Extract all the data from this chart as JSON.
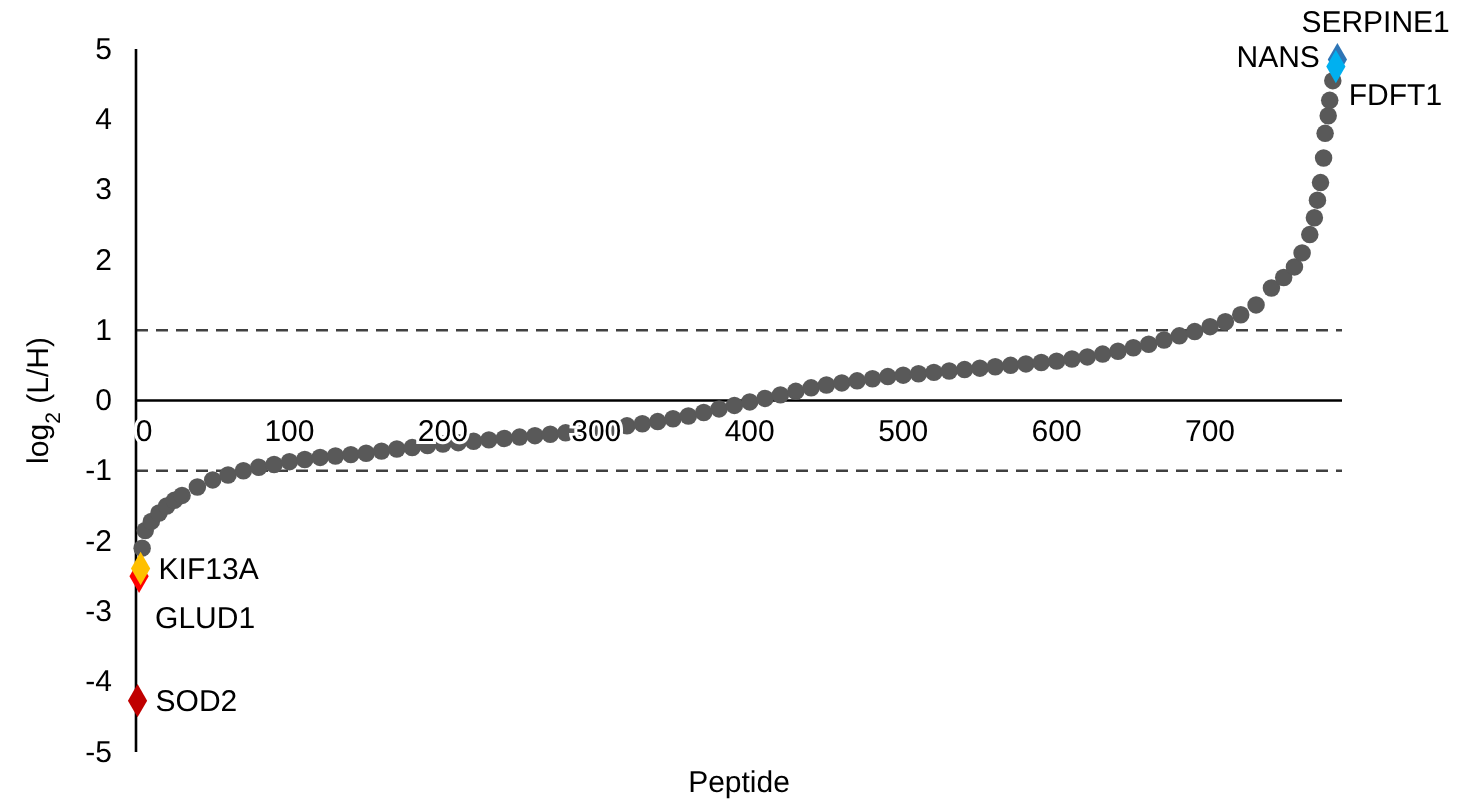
{
  "chart_data": {
    "type": "scatter",
    "xlabel": "Peptide",
    "ylabel": "log$_{2}$ (L/H)",
    "xlim": [
      0,
      786
    ],
    "ylim": [
      -5,
      5
    ],
    "xticks": [
      0,
      100,
      200,
      300,
      400,
      500,
      600,
      700
    ],
    "yticks": [
      -5,
      -4,
      -3,
      -2,
      -1,
      0,
      1,
      2,
      3,
      4,
      5
    ],
    "grid": false,
    "marker": "circle",
    "ref_lines": [
      {
        "axis": "y",
        "value": 1,
        "color": "#404040",
        "line_style": "dashed"
      },
      {
        "axis": "y",
        "value": -1,
        "color": "#404040",
        "line_style": "dashed"
      }
    ],
    "series": [
      {
        "color": "#595959",
        "x": [
          4,
          6,
          10,
          15,
          20,
          25,
          30,
          40,
          50,
          60,
          70,
          80,
          90,
          100,
          110,
          120,
          130,
          140,
          150,
          160,
          170,
          180,
          190,
          200,
          210,
          220,
          230,
          240,
          250,
          260,
          270,
          280,
          290,
          300,
          310,
          320,
          330,
          340,
          350,
          360,
          370,
          380,
          390,
          400,
          410,
          420,
          430,
          440,
          450,
          460,
          470,
          480,
          490,
          500,
          510,
          520,
          530,
          540,
          550,
          560,
          570,
          580,
          590,
          600,
          610,
          620,
          630,
          640,
          650,
          660,
          670,
          680,
          690,
          700,
          710,
          720,
          730,
          740,
          748,
          755,
          760,
          765,
          768,
          770,
          772,
          774,
          775,
          777,
          778
        ],
        "values": [
          -2.1,
          -1.85,
          -1.72,
          -1.6,
          -1.5,
          -1.42,
          -1.35,
          -1.23,
          -1.13,
          -1.06,
          -1.0,
          -0.95,
          -0.91,
          -0.87,
          -0.84,
          -0.81,
          -0.79,
          -0.77,
          -0.75,
          -0.72,
          -0.69,
          -0.67,
          -0.64,
          -0.62,
          -0.6,
          -0.58,
          -0.56,
          -0.54,
          -0.52,
          -0.5,
          -0.48,
          -0.46,
          -0.44,
          -0.42,
          -0.39,
          -0.36,
          -0.33,
          -0.3,
          -0.26,
          -0.22,
          -0.17,
          -0.12,
          -0.07,
          -0.02,
          0.03,
          0.08,
          0.13,
          0.18,
          0.22,
          0.25,
          0.28,
          0.31,
          0.34,
          0.36,
          0.38,
          0.4,
          0.42,
          0.44,
          0.46,
          0.48,
          0.5,
          0.52,
          0.54,
          0.56,
          0.59,
          0.62,
          0.66,
          0.7,
          0.75,
          0.8,
          0.86,
          0.92,
          0.98,
          1.05,
          1.12,
          1.22,
          1.36,
          1.6,
          1.75,
          1.9,
          2.1,
          2.36,
          2.6,
          2.85,
          3.1,
          3.45,
          3.8,
          4.05,
          4.27
        ]
      },
      {
        "name": "FDFT1",
        "color": "#595959",
        "marker": "circle",
        "x": [
          780
        ],
        "values": [
          4.55
        ]
      },
      {
        "name": "SERPINE1",
        "color": "#2e75b6",
        "marker": "diamond",
        "x": [
          783
        ],
        "values": [
          4.85
        ]
      },
      {
        "name": "NANS",
        "color": "#00b0f0",
        "marker": "diamond",
        "x": [
          782
        ],
        "values": [
          4.75
        ]
      },
      {
        "name": "GLUD1",
        "color": "#ff0000",
        "marker": "diamond",
        "x": [
          2
        ],
        "values": [
          -2.5
        ]
      },
      {
        "name": "KIF13A",
        "color": "#ffc000",
        "marker": "diamond",
        "x": [
          3
        ],
        "values": [
          -2.39
        ]
      },
      {
        "name": "SOD2",
        "color": "#c00000",
        "marker": "diamond",
        "x": [
          1
        ],
        "values": [
          -4.27
        ]
      }
    ]
  }
}
